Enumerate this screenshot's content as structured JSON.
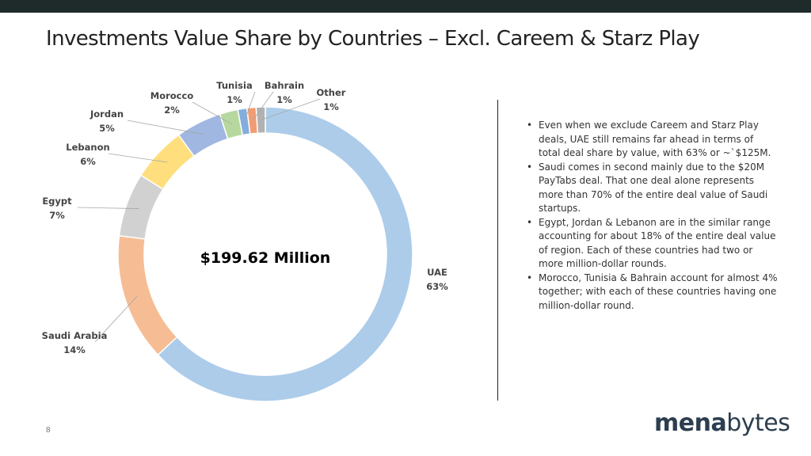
{
  "slide": {
    "title": "Investments Value Share by Countries – Excl. Careem & Starz Play",
    "page_number": "8",
    "logo": {
      "part1": "mena",
      "part2": "bytes"
    }
  },
  "chart_data": {
    "type": "pie",
    "variant": "donut",
    "title": "",
    "center_label": "$199.62 Million",
    "slices": [
      {
        "name": "UAE",
        "label": "63%",
        "value": 63,
        "color": "#9dc3e6"
      },
      {
        "name": "Saudi Arabia",
        "label": "14%",
        "value": 14,
        "color": "#f4b183"
      },
      {
        "name": "Egypt",
        "label": "7%",
        "value": 7,
        "color": "#c9c9c9"
      },
      {
        "name": "Lebanon",
        "label": "6%",
        "value": 6,
        "color": "#ffd966"
      },
      {
        "name": "Jordan",
        "label": "5%",
        "value": 5,
        "color": "#8faadc"
      },
      {
        "name": "Morocco",
        "label": "2%",
        "value": 2,
        "color": "#a9d18e"
      },
      {
        "name": "Tunisia",
        "label": "1%",
        "value": 1,
        "color": "#6f9fd8"
      },
      {
        "name": "Bahrain",
        "label": "1%",
        "value": 1,
        "color": "#f08b5a"
      },
      {
        "name": "Other",
        "label": "1%",
        "value": 1,
        "color": "#a5a5a5"
      }
    ]
  },
  "notes": [
    "Even when we exclude Careem and Starz Play deals, UAE still remains far ahead in terms of total deal share by value, with 63% or ~`$125M.",
    "Saudi comes in second mainly due to the $20M PayTabs deal. That one deal alone represents more than 70% of the entire deal value of Saudi startups.",
    "Egypt, Jordan & Lebanon are in the similar range accounting for about 18% of the entire deal value of region. Each of these countries had two or more million-dollar rounds.",
    "Morocco, Tunisia & Bahrain account for almost 4% together; with each of these countries having one million-dollar round."
  ]
}
